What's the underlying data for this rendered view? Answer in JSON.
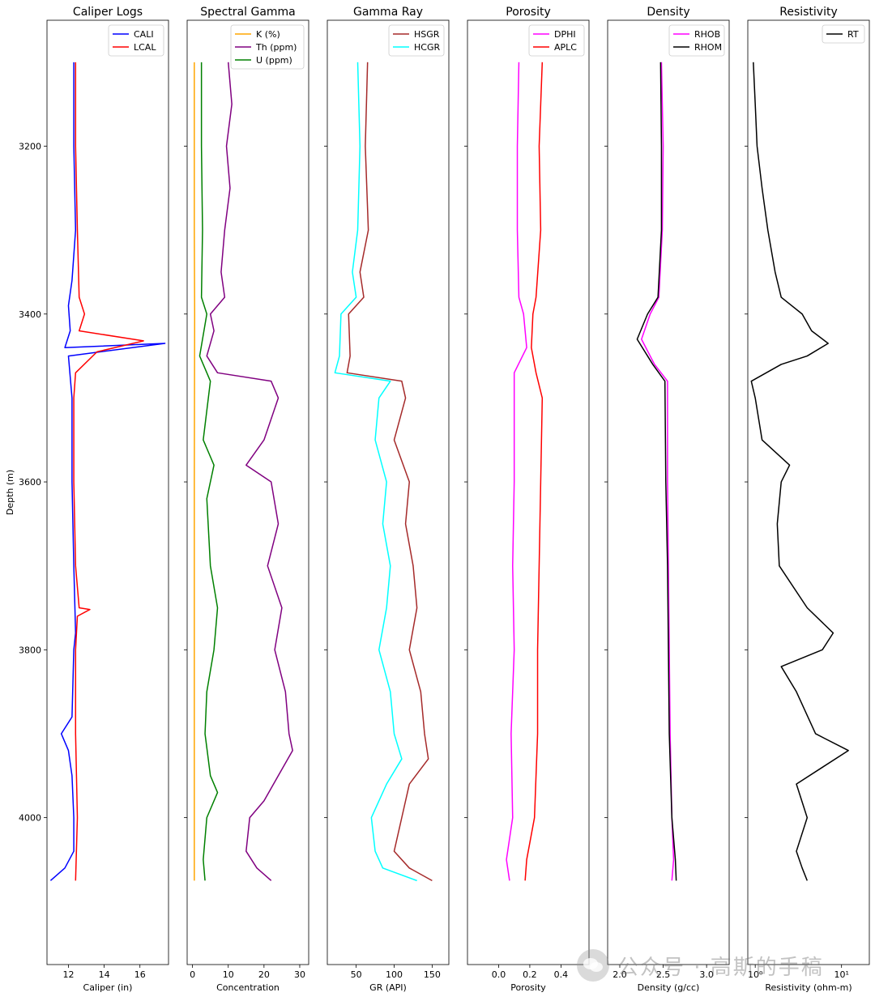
{
  "figure": {
    "ylabel": "Depth (m)",
    "yticks": [
      3200,
      3400,
      3600,
      3800,
      4000
    ],
    "ylim": [
      3050,
      4175
    ],
    "yinverted": true
  },
  "watermark": {
    "text": "公众号 · 高斯的手稿",
    "icon": "wechat-icon"
  },
  "chart_data": [
    {
      "type": "line",
      "title": "Caliper Logs",
      "xlabel": "Caliper (in)",
      "xlim": [
        10.8,
        17.6
      ],
      "xticks": [
        12,
        14,
        16
      ],
      "xtick_labels": [
        "12",
        "14",
        "16"
      ],
      "legend_position": "top-right",
      "series": [
        {
          "name": "CALI",
          "color": "#0000ff",
          "points": [
            [
              12.3,
              3100
            ],
            [
              12.3,
              3200
            ],
            [
              12.4,
              3300
            ],
            [
              12.2,
              3360
            ],
            [
              12.0,
              3390
            ],
            [
              12.1,
              3420
            ],
            [
              11.8,
              3440
            ],
            [
              17.4,
              3435
            ],
            [
              12.0,
              3450
            ],
            [
              12.2,
              3500
            ],
            [
              12.2,
              3600
            ],
            [
              12.3,
              3700
            ],
            [
              12.4,
              3780
            ],
            [
              12.3,
              3800
            ],
            [
              12.2,
              3880
            ],
            [
              11.6,
              3900
            ],
            [
              12.0,
              3920
            ],
            [
              12.2,
              3950
            ],
            [
              12.3,
              4000
            ],
            [
              12.3,
              4040
            ],
            [
              11.8,
              4060
            ],
            [
              11.0,
              4075
            ]
          ]
        },
        {
          "name": "LCAL",
          "color": "#ff0000",
          "points": [
            [
              12.4,
              3100
            ],
            [
              12.4,
              3200
            ],
            [
              12.5,
              3300
            ],
            [
              12.6,
              3380
            ],
            [
              12.9,
              3400
            ],
            [
              12.6,
              3420
            ],
            [
              16.2,
              3432
            ],
            [
              13.6,
              3445
            ],
            [
              12.4,
              3470
            ],
            [
              12.3,
              3500
            ],
            [
              12.3,
              3600
            ],
            [
              12.4,
              3700
            ],
            [
              12.6,
              3750
            ],
            [
              13.2,
              3752
            ],
            [
              12.5,
              3760
            ],
            [
              12.4,
              3800
            ],
            [
              12.4,
              3900
            ],
            [
              12.5,
              4000
            ],
            [
              12.4,
              4075
            ]
          ]
        }
      ]
    },
    {
      "type": "line",
      "title": "Spectral Gamma",
      "xlabel": "Concentration",
      "xlim": [
        -1.5,
        32.5
      ],
      "xticks": [
        0,
        10,
        20,
        30
      ],
      "xtick_labels": [
        "0",
        "10",
        "20",
        "30"
      ],
      "legend_position": "top-right",
      "series": [
        {
          "name": "K (%)",
          "color": "#ffa500",
          "points": [
            [
              0.5,
              3100
            ],
            [
              0.5,
              3300
            ],
            [
              0.6,
              3400
            ],
            [
              0.5,
              3600
            ],
            [
              0.5,
              3800
            ],
            [
              0.5,
              4000
            ],
            [
              0.5,
              4075
            ]
          ]
        },
        {
          "name": "Th (ppm)",
          "color": "#800080",
          "points": [
            [
              10,
              3100
            ],
            [
              11,
              3150
            ],
            [
              9.5,
              3200
            ],
            [
              10.5,
              3250
            ],
            [
              9,
              3300
            ],
            [
              8,
              3350
            ],
            [
              9,
              3380
            ],
            [
              5,
              3400
            ],
            [
              6,
              3420
            ],
            [
              4,
              3450
            ],
            [
              7,
              3470
            ],
            [
              22,
              3480
            ],
            [
              24,
              3500
            ],
            [
              20,
              3550
            ],
            [
              15,
              3580
            ],
            [
              22,
              3600
            ],
            [
              24,
              3650
            ],
            [
              21,
              3700
            ],
            [
              25,
              3750
            ],
            [
              23,
              3800
            ],
            [
              26,
              3850
            ],
            [
              27,
              3900
            ],
            [
              28,
              3920
            ],
            [
              24,
              3950
            ],
            [
              20,
              3980
            ],
            [
              16,
              4000
            ],
            [
              15,
              4040
            ],
            [
              18,
              4060
            ],
            [
              22,
              4075
            ]
          ]
        },
        {
          "name": "U (ppm)",
          "color": "#008000",
          "points": [
            [
              2.5,
              3100
            ],
            [
              2.5,
              3200
            ],
            [
              2.8,
              3300
            ],
            [
              2.5,
              3380
            ],
            [
              4,
              3400
            ],
            [
              2,
              3450
            ],
            [
              5,
              3480
            ],
            [
              3,
              3550
            ],
            [
              6,
              3580
            ],
            [
              4,
              3620
            ],
            [
              5,
              3700
            ],
            [
              7,
              3750
            ],
            [
              6,
              3800
            ],
            [
              4,
              3850
            ],
            [
              3.5,
              3900
            ],
            [
              5,
              3950
            ],
            [
              7,
              3970
            ],
            [
              4,
              4000
            ],
            [
              3,
              4050
            ],
            [
              3.5,
              4075
            ]
          ]
        }
      ]
    },
    {
      "type": "line",
      "title": "Gamma Ray",
      "xlabel": "GR (API)",
      "xlim": [
        12,
        172
      ],
      "xticks": [
        50,
        100,
        150
      ],
      "xtick_labels": [
        "50",
        "100",
        "150"
      ],
      "legend_position": "top-right",
      "series": [
        {
          "name": "HSGR",
          "color": "#a52a2a",
          "points": [
            [
              65,
              3100
            ],
            [
              62,
              3200
            ],
            [
              66,
              3300
            ],
            [
              55,
              3350
            ],
            [
              60,
              3380
            ],
            [
              40,
              3400
            ],
            [
              42,
              3450
            ],
            [
              38,
              3470
            ],
            [
              110,
              3480
            ],
            [
              115,
              3500
            ],
            [
              100,
              3550
            ],
            [
              120,
              3600
            ],
            [
              115,
              3650
            ],
            [
              125,
              3700
            ],
            [
              130,
              3750
            ],
            [
              120,
              3800
            ],
            [
              135,
              3850
            ],
            [
              140,
              3900
            ],
            [
              145,
              3930
            ],
            [
              120,
              3960
            ],
            [
              110,
              4000
            ],
            [
              100,
              4040
            ],
            [
              120,
              4060
            ],
            [
              150,
              4075
            ]
          ]
        },
        {
          "name": "HCGR",
          "color": "#00ffff",
          "points": [
            [
              52,
              3100
            ],
            [
              55,
              3200
            ],
            [
              52,
              3300
            ],
            [
              45,
              3350
            ],
            [
              50,
              3380
            ],
            [
              30,
              3400
            ],
            [
              28,
              3450
            ],
            [
              22,
              3470
            ],
            [
              95,
              3480
            ],
            [
              80,
              3500
            ],
            [
              75,
              3550
            ],
            [
              90,
              3600
            ],
            [
              85,
              3650
            ],
            [
              95,
              3700
            ],
            [
              90,
              3750
            ],
            [
              80,
              3800
            ],
            [
              95,
              3850
            ],
            [
              100,
              3900
            ],
            [
              110,
              3930
            ],
            [
              90,
              3960
            ],
            [
              70,
              4000
            ],
            [
              75,
              4040
            ],
            [
              85,
              4060
            ],
            [
              130,
              4075
            ]
          ]
        }
      ]
    },
    {
      "type": "line",
      "title": "Porosity",
      "xlabel": "Porosity",
      "xlim": [
        -0.2,
        0.58
      ],
      "xticks": [
        0.0,
        0.2,
        0.4
      ],
      "xtick_labels": [
        "0.0",
        "0.2",
        "0.4"
      ],
      "legend_position": "top-right",
      "series": [
        {
          "name": "DPHI",
          "color": "#ff00ff",
          "points": [
            [
              0.13,
              3100
            ],
            [
              0.12,
              3200
            ],
            [
              0.12,
              3300
            ],
            [
              0.13,
              3380
            ],
            [
              0.16,
              3400
            ],
            [
              0.18,
              3440
            ],
            [
              0.1,
              3470
            ],
            [
              0.1,
              3500
            ],
            [
              0.1,
              3600
            ],
            [
              0.09,
              3700
            ],
            [
              0.1,
              3800
            ],
            [
              0.08,
              3900
            ],
            [
              0.09,
              4000
            ],
            [
              0.05,
              4050
            ],
            [
              0.07,
              4075
            ]
          ]
        },
        {
          "name": "APLC",
          "color": "#ff0000",
          "points": [
            [
              0.28,
              3100
            ],
            [
              0.26,
              3200
            ],
            [
              0.27,
              3300
            ],
            [
              0.24,
              3380
            ],
            [
              0.22,
              3400
            ],
            [
              0.21,
              3440
            ],
            [
              0.24,
              3470
            ],
            [
              0.28,
              3500
            ],
            [
              0.27,
              3600
            ],
            [
              0.26,
              3700
            ],
            [
              0.25,
              3800
            ],
            [
              0.25,
              3900
            ],
            [
              0.23,
              4000
            ],
            [
              0.18,
              4050
            ],
            [
              0.17,
              4075
            ]
          ]
        }
      ]
    },
    {
      "type": "line",
      "title": "Density",
      "xlabel": "Density (g/cc)",
      "xlim": [
        1.86,
        3.26
      ],
      "xticks": [
        2.0,
        2.5,
        3.0
      ],
      "xtick_labels": [
        "2.0",
        "2.5",
        "3.0"
      ],
      "legend_position": "top-right",
      "series": [
        {
          "name": "RHOB",
          "color": "#ff00ff",
          "points": [
            [
              2.48,
              3100
            ],
            [
              2.5,
              3200
            ],
            [
              2.49,
              3300
            ],
            [
              2.45,
              3380
            ],
            [
              2.35,
              3400
            ],
            [
              2.25,
              3430
            ],
            [
              2.4,
              3460
            ],
            [
              2.55,
              3480
            ],
            [
              2.55,
              3600
            ],
            [
              2.56,
              3700
            ],
            [
              2.57,
              3800
            ],
            [
              2.58,
              3900
            ],
            [
              2.6,
              4000
            ],
            [
              2.62,
              4050
            ],
            [
              2.6,
              4075
            ]
          ]
        },
        {
          "name": "RHOM",
          "color": "#000000",
          "points": [
            [
              2.47,
              3100
            ],
            [
              2.48,
              3200
            ],
            [
              2.48,
              3300
            ],
            [
              2.44,
              3380
            ],
            [
              2.32,
              3400
            ],
            [
              2.2,
              3430
            ],
            [
              2.38,
              3460
            ],
            [
              2.52,
              3480
            ],
            [
              2.53,
              3600
            ],
            [
              2.55,
              3700
            ],
            [
              2.56,
              3800
            ],
            [
              2.57,
              3900
            ],
            [
              2.6,
              4000
            ],
            [
              2.64,
              4050
            ],
            [
              2.65,
              4075
            ]
          ]
        }
      ]
    },
    {
      "type": "line",
      "title": "Resistivity",
      "xlabel": "Resistivity (ohm-m)",
      "xscale": "log",
      "xlim": [
        0.82,
        21
      ],
      "xticks": [
        1,
        10
      ],
      "xtick_labels": [
        "10⁰",
        "10¹"
      ],
      "legend_position": "top-right",
      "series": [
        {
          "name": "RT",
          "color": "#000000",
          "points": [
            [
              0.95,
              3100
            ],
            [
              1.0,
              3150
            ],
            [
              1.05,
              3200
            ],
            [
              1.2,
              3250
            ],
            [
              1.4,
              3300
            ],
            [
              1.7,
              3350
            ],
            [
              2.0,
              3380
            ],
            [
              3.5,
              3400
            ],
            [
              4.5,
              3420
            ],
            [
              7,
              3435
            ],
            [
              4,
              3450
            ],
            [
              2,
              3460
            ],
            [
              0.9,
              3480
            ],
            [
              1.0,
              3500
            ],
            [
              1.2,
              3550
            ],
            [
              2.5,
              3580
            ],
            [
              2.0,
              3600
            ],
            [
              1.8,
              3650
            ],
            [
              1.9,
              3700
            ],
            [
              4,
              3750
            ],
            [
              8,
              3780
            ],
            [
              6,
              3800
            ],
            [
              2,
              3820
            ],
            [
              3,
              3850
            ],
            [
              5,
              3900
            ],
            [
              12,
              3920
            ],
            [
              6,
              3940
            ],
            [
              3,
              3960
            ],
            [
              4,
              4000
            ],
            [
              3,
              4040
            ],
            [
              3.5,
              4060
            ],
            [
              4,
              4075
            ]
          ]
        }
      ]
    }
  ]
}
